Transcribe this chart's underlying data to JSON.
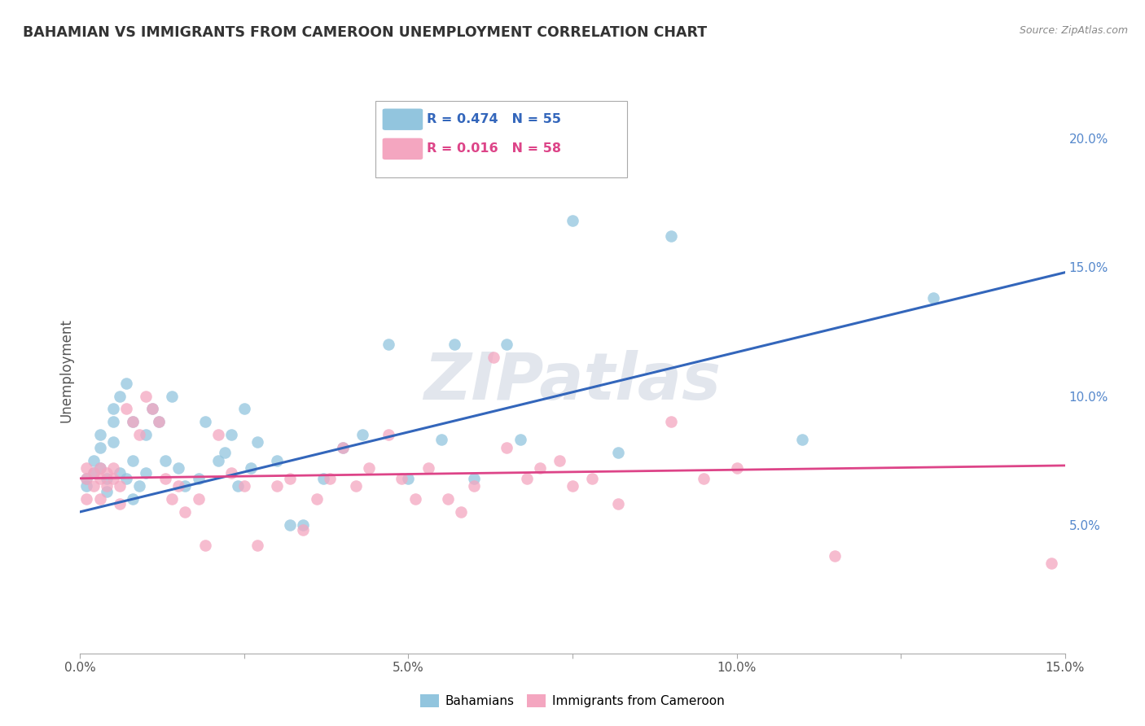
{
  "title": "BAHAMIAN VS IMMIGRANTS FROM CAMEROON UNEMPLOYMENT CORRELATION CHART",
  "source": "Source: ZipAtlas.com",
  "ylabel": "Unemployment",
  "x_min": 0.0,
  "x_max": 0.15,
  "y_min": 0.0,
  "y_max": 0.22,
  "y_ticks_right": [
    0.05,
    0.1,
    0.15,
    0.2
  ],
  "y_tick_labels_right": [
    "5.0%",
    "10.0%",
    "15.0%",
    "20.0%"
  ],
  "x_ticks_major": [
    0.0,
    0.05,
    0.1,
    0.15
  ],
  "x_tick_labels_major": [
    "0.0%",
    "5.0%",
    "10.0%",
    "15.0%"
  ],
  "watermark": "ZIPatlas",
  "bahamian_color": "#92c5de",
  "cameroon_color": "#f4a6c0",
  "bahamian_R": "0.474",
  "bahamian_N": "55",
  "cameroon_R": "0.016",
  "cameroon_N": "58",
  "blue_line_x": [
    0.0,
    0.15
  ],
  "blue_line_y": [
    0.055,
    0.148
  ],
  "pink_line_x": [
    0.0,
    0.15
  ],
  "pink_line_y": [
    0.068,
    0.073
  ],
  "bahamian_x": [
    0.001,
    0.001,
    0.002,
    0.002,
    0.003,
    0.003,
    0.003,
    0.004,
    0.004,
    0.005,
    0.005,
    0.005,
    0.006,
    0.006,
    0.007,
    0.007,
    0.008,
    0.008,
    0.008,
    0.009,
    0.01,
    0.01,
    0.011,
    0.012,
    0.013,
    0.014,
    0.015,
    0.016,
    0.018,
    0.019,
    0.021,
    0.022,
    0.023,
    0.024,
    0.025,
    0.026,
    0.027,
    0.03,
    0.032,
    0.034,
    0.037,
    0.04,
    0.043,
    0.047,
    0.05,
    0.055,
    0.057,
    0.06,
    0.065,
    0.067,
    0.075,
    0.082,
    0.09,
    0.11,
    0.13
  ],
  "bahamian_y": [
    0.068,
    0.065,
    0.075,
    0.07,
    0.08,
    0.085,
    0.072,
    0.068,
    0.063,
    0.082,
    0.09,
    0.095,
    0.07,
    0.1,
    0.068,
    0.105,
    0.06,
    0.075,
    0.09,
    0.065,
    0.07,
    0.085,
    0.095,
    0.09,
    0.075,
    0.1,
    0.072,
    0.065,
    0.068,
    0.09,
    0.075,
    0.078,
    0.085,
    0.065,
    0.095,
    0.072,
    0.082,
    0.075,
    0.05,
    0.05,
    0.068,
    0.08,
    0.085,
    0.12,
    0.068,
    0.083,
    0.12,
    0.068,
    0.12,
    0.083,
    0.168,
    0.078,
    0.162,
    0.083,
    0.138
  ],
  "cameroon_x": [
    0.001,
    0.001,
    0.001,
    0.002,
    0.002,
    0.003,
    0.003,
    0.003,
    0.004,
    0.004,
    0.005,
    0.005,
    0.006,
    0.006,
    0.007,
    0.008,
    0.009,
    0.01,
    0.011,
    0.012,
    0.013,
    0.014,
    0.015,
    0.016,
    0.018,
    0.019,
    0.021,
    0.023,
    0.025,
    0.027,
    0.03,
    0.032,
    0.034,
    0.036,
    0.038,
    0.04,
    0.042,
    0.044,
    0.047,
    0.049,
    0.051,
    0.053,
    0.056,
    0.058,
    0.06,
    0.063,
    0.065,
    0.068,
    0.07,
    0.073,
    0.075,
    0.078,
    0.082,
    0.09,
    0.095,
    0.1,
    0.115,
    0.148
  ],
  "cameroon_y": [
    0.068,
    0.06,
    0.072,
    0.07,
    0.065,
    0.072,
    0.068,
    0.06,
    0.07,
    0.065,
    0.068,
    0.072,
    0.058,
    0.065,
    0.095,
    0.09,
    0.085,
    0.1,
    0.095,
    0.09,
    0.068,
    0.06,
    0.065,
    0.055,
    0.06,
    0.042,
    0.085,
    0.07,
    0.065,
    0.042,
    0.065,
    0.068,
    0.048,
    0.06,
    0.068,
    0.08,
    0.065,
    0.072,
    0.085,
    0.068,
    0.06,
    0.072,
    0.06,
    0.055,
    0.065,
    0.115,
    0.08,
    0.068,
    0.072,
    0.075,
    0.065,
    0.068,
    0.058,
    0.09,
    0.068,
    0.072,
    0.038,
    0.035
  ],
  "background_color": "#ffffff",
  "grid_color": "#d0d0d0",
  "title_color": "#333333",
  "axis_label_color": "#555555",
  "right_axis_color": "#5588cc",
  "blue_line_color": "#3366bb",
  "pink_line_color": "#dd4488"
}
